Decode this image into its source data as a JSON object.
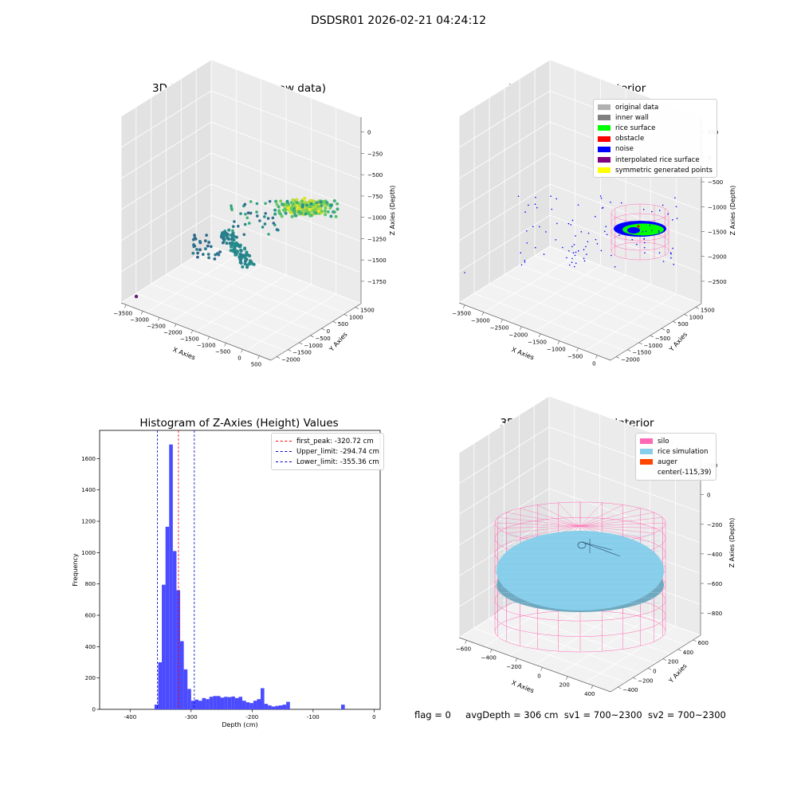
{
  "figure_title": "DSDSR01 2026-02-21 04:24:12",
  "status_line": {
    "flag": "flag = 0",
    "avg_depth": "avgDepth = 306 cm",
    "sv1": "sv1 = 700~2300",
    "sv2": "sv2 = 700~2300"
  },
  "colors": {
    "histogram_bar": "#4b4bff",
    "peak_line": "#ff0000",
    "limit_line": "#0000cc",
    "silo": "#ff69b4",
    "rice_simulation": "#87ceeb",
    "auger": "#ff4500",
    "rice_surface": "#00ff00",
    "noise": "#0000ff",
    "obstacle": "#ff0000",
    "inner_wall": "#808080",
    "original_data": "#b0b0b0",
    "interpolated": "#800080",
    "symmetric": "#ffff00"
  },
  "chart_data": [
    {
      "type": "scatter",
      "projection": "3d",
      "title": "3D Plot of Silo Interior(row data)",
      "xlabel": "X Axies",
      "ylabel": "Y Axies",
      "zlabel": "Z Axies (Depth)",
      "x_ticks": [
        "−3500",
        "−3000",
        "−2500",
        "−2000",
        "−1500",
        "−1000",
        "−500",
        "0",
        "500"
      ],
      "y_ticks": [
        "−2000",
        "−1500",
        "−1000",
        "−500",
        "0",
        "500",
        "1000",
        "1500"
      ],
      "z_ticks": [
        "0",
        "−250",
        "−500",
        "−750",
        "−1000",
        "−1250",
        "−1500",
        "−1750"
      ],
      "colormap": "viridis",
      "point_groups": [
        {
          "name": "cluster",
          "x_range": [
            -500,
            200
          ],
          "y_range": [
            -300,
            300
          ],
          "z_range": [
            -650,
            -450
          ],
          "approx_count": 400
        },
        {
          "name": "ridge",
          "x_range": [
            -2100,
            -1300
          ],
          "y_range": [
            -300,
            300
          ],
          "z_range": [
            -1500,
            -1100
          ],
          "approx_count": 120
        },
        {
          "name": "scattered",
          "x_range": [
            -1700,
            -900
          ],
          "y_range": [
            -700,
            700
          ],
          "z_range": [
            -1250,
            -800
          ],
          "approx_count": 45
        }
      ]
    },
    {
      "type": "scatter",
      "projection": "3d",
      "title": "3D classify of Silo Interior",
      "xlabel": "X Axies",
      "ylabel": "Y Axies",
      "zlabel": "Z Axies (Depth)",
      "x_ticks": [
        "−3500",
        "−3000",
        "−2500",
        "−2000",
        "−1500",
        "−1000",
        "−500",
        "0"
      ],
      "y_ticks": [
        "−2000",
        "−1500",
        "−1000",
        "−500",
        "0",
        "500",
        "1000",
        "1500"
      ],
      "z_ticks": [
        "500",
        "0",
        "−500",
        "−1000",
        "−1500",
        "−2000",
        "−2500"
      ],
      "legend_position": "upper right",
      "legend": [
        {
          "label": "original data",
          "color": "#b0b0b0"
        },
        {
          "label": "inner wall",
          "color": "#808080"
        },
        {
          "label": "rice surface",
          "color": "#00ff00"
        },
        {
          "label": "obstacle",
          "color": "#ff0000"
        },
        {
          "label": "noise",
          "color": "#0000ff"
        },
        {
          "label": "interpolated rice surface",
          "color": "#800080"
        },
        {
          "label": "symmetric generated points",
          "color": "#ffff00"
        }
      ]
    },
    {
      "type": "bar",
      "title": "Histogram of Z-Axies (Height) Values",
      "xlabel": "Depth (cm)",
      "ylabel": "Frequency",
      "xlim": [
        -450,
        10
      ],
      "ylim": [
        0,
        1780
      ],
      "x_ticks": [
        -400,
        -300,
        -200,
        -100,
        0
      ],
      "y_ticks": [
        0,
        200,
        400,
        600,
        800,
        1000,
        1200,
        1400,
        1600
      ],
      "bin_width": 6,
      "bins": [
        {
          "x": -357,
          "y": 30
        },
        {
          "x": -351,
          "y": 300
        },
        {
          "x": -345,
          "y": 795
        },
        {
          "x": -339,
          "y": 1165
        },
        {
          "x": -333,
          "y": 1690
        },
        {
          "x": -327,
          "y": 1010
        },
        {
          "x": -321,
          "y": 760
        },
        {
          "x": -315,
          "y": 435
        },
        {
          "x": -309,
          "y": 255
        },
        {
          "x": -303,
          "y": 130
        },
        {
          "x": -297,
          "y": 55
        },
        {
          "x": -291,
          "y": 62
        },
        {
          "x": -285,
          "y": 55
        },
        {
          "x": -279,
          "y": 72
        },
        {
          "x": -273,
          "y": 65
        },
        {
          "x": -267,
          "y": 80
        },
        {
          "x": -261,
          "y": 85
        },
        {
          "x": -255,
          "y": 85
        },
        {
          "x": -249,
          "y": 75
        },
        {
          "x": -243,
          "y": 80
        },
        {
          "x": -237,
          "y": 78
        },
        {
          "x": -231,
          "y": 82
        },
        {
          "x": -225,
          "y": 72
        },
        {
          "x": -219,
          "y": 80
        },
        {
          "x": -213,
          "y": 55
        },
        {
          "x": -207,
          "y": 45
        },
        {
          "x": -201,
          "y": 40
        },
        {
          "x": -195,
          "y": 55
        },
        {
          "x": -189,
          "y": 65
        },
        {
          "x": -183,
          "y": 135
        },
        {
          "x": -177,
          "y": 35
        },
        {
          "x": -171,
          "y": 25
        },
        {
          "x": -165,
          "y": 18
        },
        {
          "x": -159,
          "y": 22
        },
        {
          "x": -153,
          "y": 25
        },
        {
          "x": -147,
          "y": 30
        },
        {
          "x": -141,
          "y": 48
        },
        {
          "x": -51,
          "y": 30
        }
      ],
      "vlines": [
        {
          "x": -320.72,
          "label": "first_peak: -320.72 cm",
          "color": "#ff0000"
        },
        {
          "x": -294.74,
          "label": "Upper_limit: -294.74 cm",
          "color": "#0000cc"
        },
        {
          "x": -355.36,
          "label": "Lower_limit: -355.36 cm",
          "color": "#0000cc"
        }
      ],
      "legend_position": "upper right"
    },
    {
      "type": "surface",
      "projection": "3d",
      "title": "3D simulation of Silo Interior",
      "xlabel": "X Axies",
      "ylabel": "Y Axies",
      "zlabel": "Z Axies (Depth)",
      "x_ticks": [
        "−600",
        "−400",
        "−200",
        "0",
        "200",
        "400"
      ],
      "y_ticks": [
        "−400",
        "−200",
        "0",
        "200",
        "400",
        "600"
      ],
      "z_ticks": [
        "200",
        "0",
        "−200",
        "−400",
        "−600",
        "−800"
      ],
      "legend_position": "upper right",
      "legend": [
        {
          "label": "silo",
          "color": "#ff69b4"
        },
        {
          "label": "rice simulation",
          "color": "#87ceeb"
        },
        {
          "label": "auger",
          "color": "#ff4500"
        },
        {
          "label": "center(-115,39)",
          "color": ""
        }
      ]
    }
  ]
}
